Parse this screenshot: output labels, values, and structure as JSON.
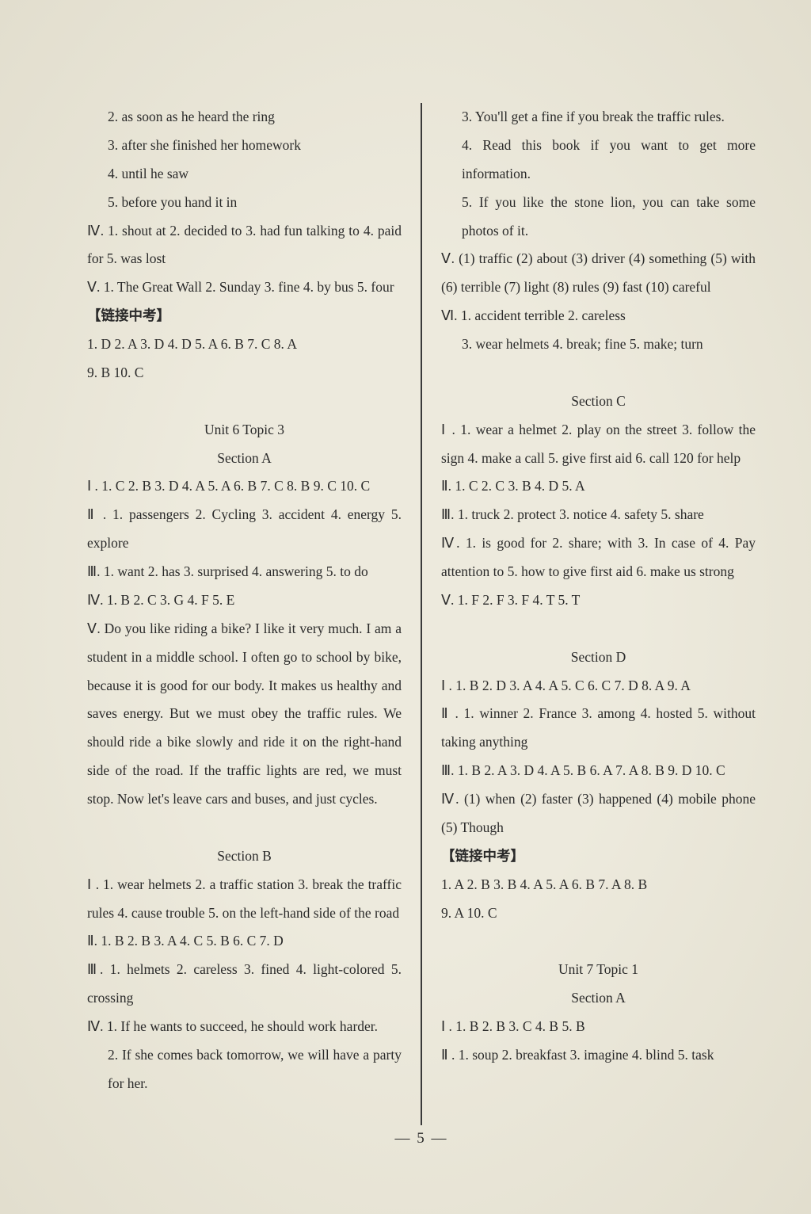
{
  "background_color": "#e8e4d5",
  "text_color": "#2a2a2a",
  "font_family": "Times New Roman, serif",
  "base_font_size_pt": 13,
  "line_height": 2.05,
  "link_label": "【链接中考】",
  "left": {
    "pre": [
      "2. as soon as he heard the ring",
      "3. after she finished her homework",
      "4. until he saw",
      "5. before you hand it in"
    ],
    "iv": "Ⅳ. 1. shout at   2. decided to   3. had fun talking to   4. paid for   5. was lost",
    "v": "Ⅴ. 1. The Great Wall   2. Sunday   3. fine   4. by bus   5. four",
    "link1": [
      "1. D   2. A   3. D   4. D   5. A   6. B   7. C   8. A",
      "9. B   10. C"
    ],
    "u6t3": "Unit 6 Topic 3",
    "secA": "Section A",
    "a": {
      "i": "Ⅰ . 1. C   2. B   3. D   4. A   5. A   6. B   7. C   8. B   9. C   10. C",
      "ii": "Ⅱ . 1. passengers   2. Cycling   3. accident   4. energy   5. explore",
      "iii": "Ⅲ. 1. want   2. has   3. surprised   4. answering   5. to do",
      "iv": "Ⅳ. 1. B   2. C   3. G   4. F   5. E",
      "v": "Ⅴ. Do you like riding a bike? I like it very much. I am a student in a middle school. I often go to school by bike, because it is good for our body. It makes us healthy and saves energy. But we must obey the traffic rules. We should ride a bike slowly and ride it on the right-hand side of the road. If the traffic lights are red, we must stop. Now let's leave cars and buses, and just cycles."
    },
    "secB": "Section B",
    "b": {
      "i": "Ⅰ . 1. wear helmets   2. a traffic station   3. break the traffic rules   4. cause trouble   5. on the left-hand side of the road",
      "ii": "Ⅱ. 1. B   2. B   3. A   4. C   5. B   6. C   7. D",
      "iii": "Ⅲ. 1. helmets   2. careless   3. fined   4. light-colored   5. crossing",
      "iv": [
        "Ⅳ. 1. If he wants to succeed, he should work harder.",
        "2. If she comes back tomorrow, we will have a party for her."
      ]
    }
  },
  "right": {
    "pre": [
      "3. You'll get a fine if you break the traffic rules.",
      "4. Read this book if you want to get more information.",
      "5. If you like the stone lion, you can take some photos of it."
    ],
    "v": "Ⅴ. (1) traffic   (2) about   (3) driver   (4) something   (5) with   (6) terrible   (7) light   (8) rules   (9) fast   (10) careful",
    "vi": [
      "Ⅵ. 1. accident   terrible   2. careless",
      "3. wear helmets   4. break; fine   5. make; turn"
    ],
    "secC": "Section C",
    "c": {
      "i": "Ⅰ . 1. wear a helmet   2. play on the street   3. follow the sign   4. make a call   5. give first aid   6. call 120 for help",
      "ii": "Ⅱ. 1. C   2. C   3. B   4. D   5. A",
      "iii": "Ⅲ. 1. truck   2. protect   3. notice   4. safety   5. share",
      "iv": "Ⅳ. 1. is good for   2. share; with   3. In case of   4. Pay attention to   5. how to give first aid   6. make us strong",
      "v": "Ⅴ. 1. F   2. F   3. F   4. T   5. T"
    },
    "secD": "Section D",
    "d": {
      "i": "Ⅰ . 1. B   2. D   3. A   4. A   5. C   6. C   7. D   8. A   9. A",
      "ii": "Ⅱ . 1. winner   2. France   3. among   4. hosted   5. without taking anything",
      "iii": "Ⅲ. 1. B   2. A   3. D   4. A   5. B   6. A   7. A   8. B   9. D   10. C",
      "iv": "Ⅳ. (1) when   (2) faster   (3) happened   (4) mobile phone   (5) Though"
    },
    "link2": [
      "1. A   2. B   3. B   4. A   5. A   6. B   7. A   8. B",
      "9. A   10. C"
    ],
    "u7t1": "Unit 7 Topic 1",
    "secA2": "Section A",
    "a2": {
      "i": "Ⅰ . 1. B   2. B   3. C   4. B   5. B",
      "ii": "Ⅱ . 1. soup   2. breakfast   3. imagine   4. blind   5. task"
    }
  },
  "pageno": "— 5 —"
}
